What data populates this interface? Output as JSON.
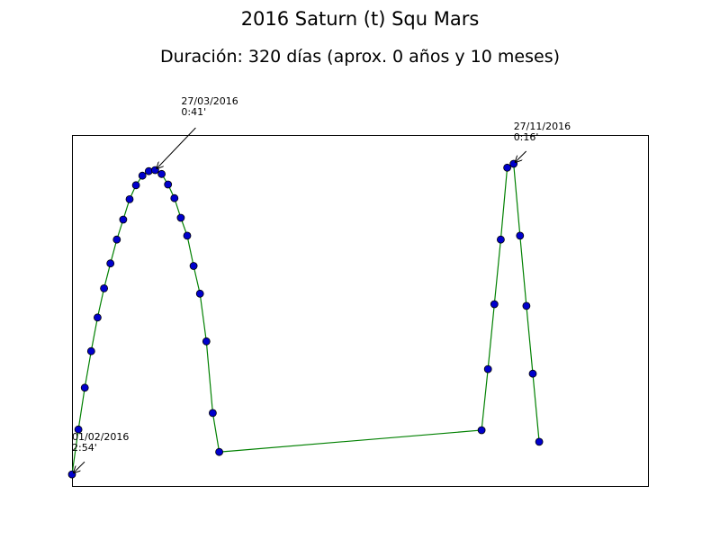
{
  "chart_data": {
    "type": "line",
    "title": "2016 Saturn (t) Squ Mars",
    "subtitle": "Duración: 320 días (aprox. 0 años y 10 meses)",
    "xlabel": "",
    "ylabel": "",
    "grid": false,
    "line_color": "#008000",
    "marker_color": "#0000cc",
    "x_range_days": [
      0,
      360
    ],
    "y_range": [
      0,
      100
    ],
    "series": [
      {
        "x": [
          0,
          4,
          8,
          12,
          16,
          20,
          24,
          28,
          32,
          36,
          40,
          44,
          48,
          52,
          56,
          60,
          64,
          68,
          72,
          76,
          80,
          84,
          88,
          92,
          256,
          260,
          264,
          268,
          272,
          276,
          280,
          284,
          288,
          292
        ],
        "y": [
          3.3,
          16.1,
          28.0,
          38.4,
          48.0,
          56.3,
          63.4,
          70.2,
          75.9,
          81.7,
          85.7,
          88.4,
          89.7,
          90.0,
          88.9,
          85.9,
          82.0,
          76.4,
          71.3,
          62.7,
          54.8,
          41.2,
          20.8,
          9.7,
          15.9,
          33.3,
          51.8,
          70.2,
          90.7,
          91.8,
          71.3,
          51.3,
          32.0,
          12.6
        ]
      }
    ],
    "annotations": [
      {
        "date": "01/02/2016",
        "value": "2:54'",
        "x": 0,
        "y": 3.3
      },
      {
        "date": "27/03/2016",
        "value": "0:41'",
        "x": 52,
        "y": 90.0
      },
      {
        "date": "27/11/2016",
        "value": "0:16'",
        "x": 276,
        "y": 91.8
      }
    ]
  }
}
